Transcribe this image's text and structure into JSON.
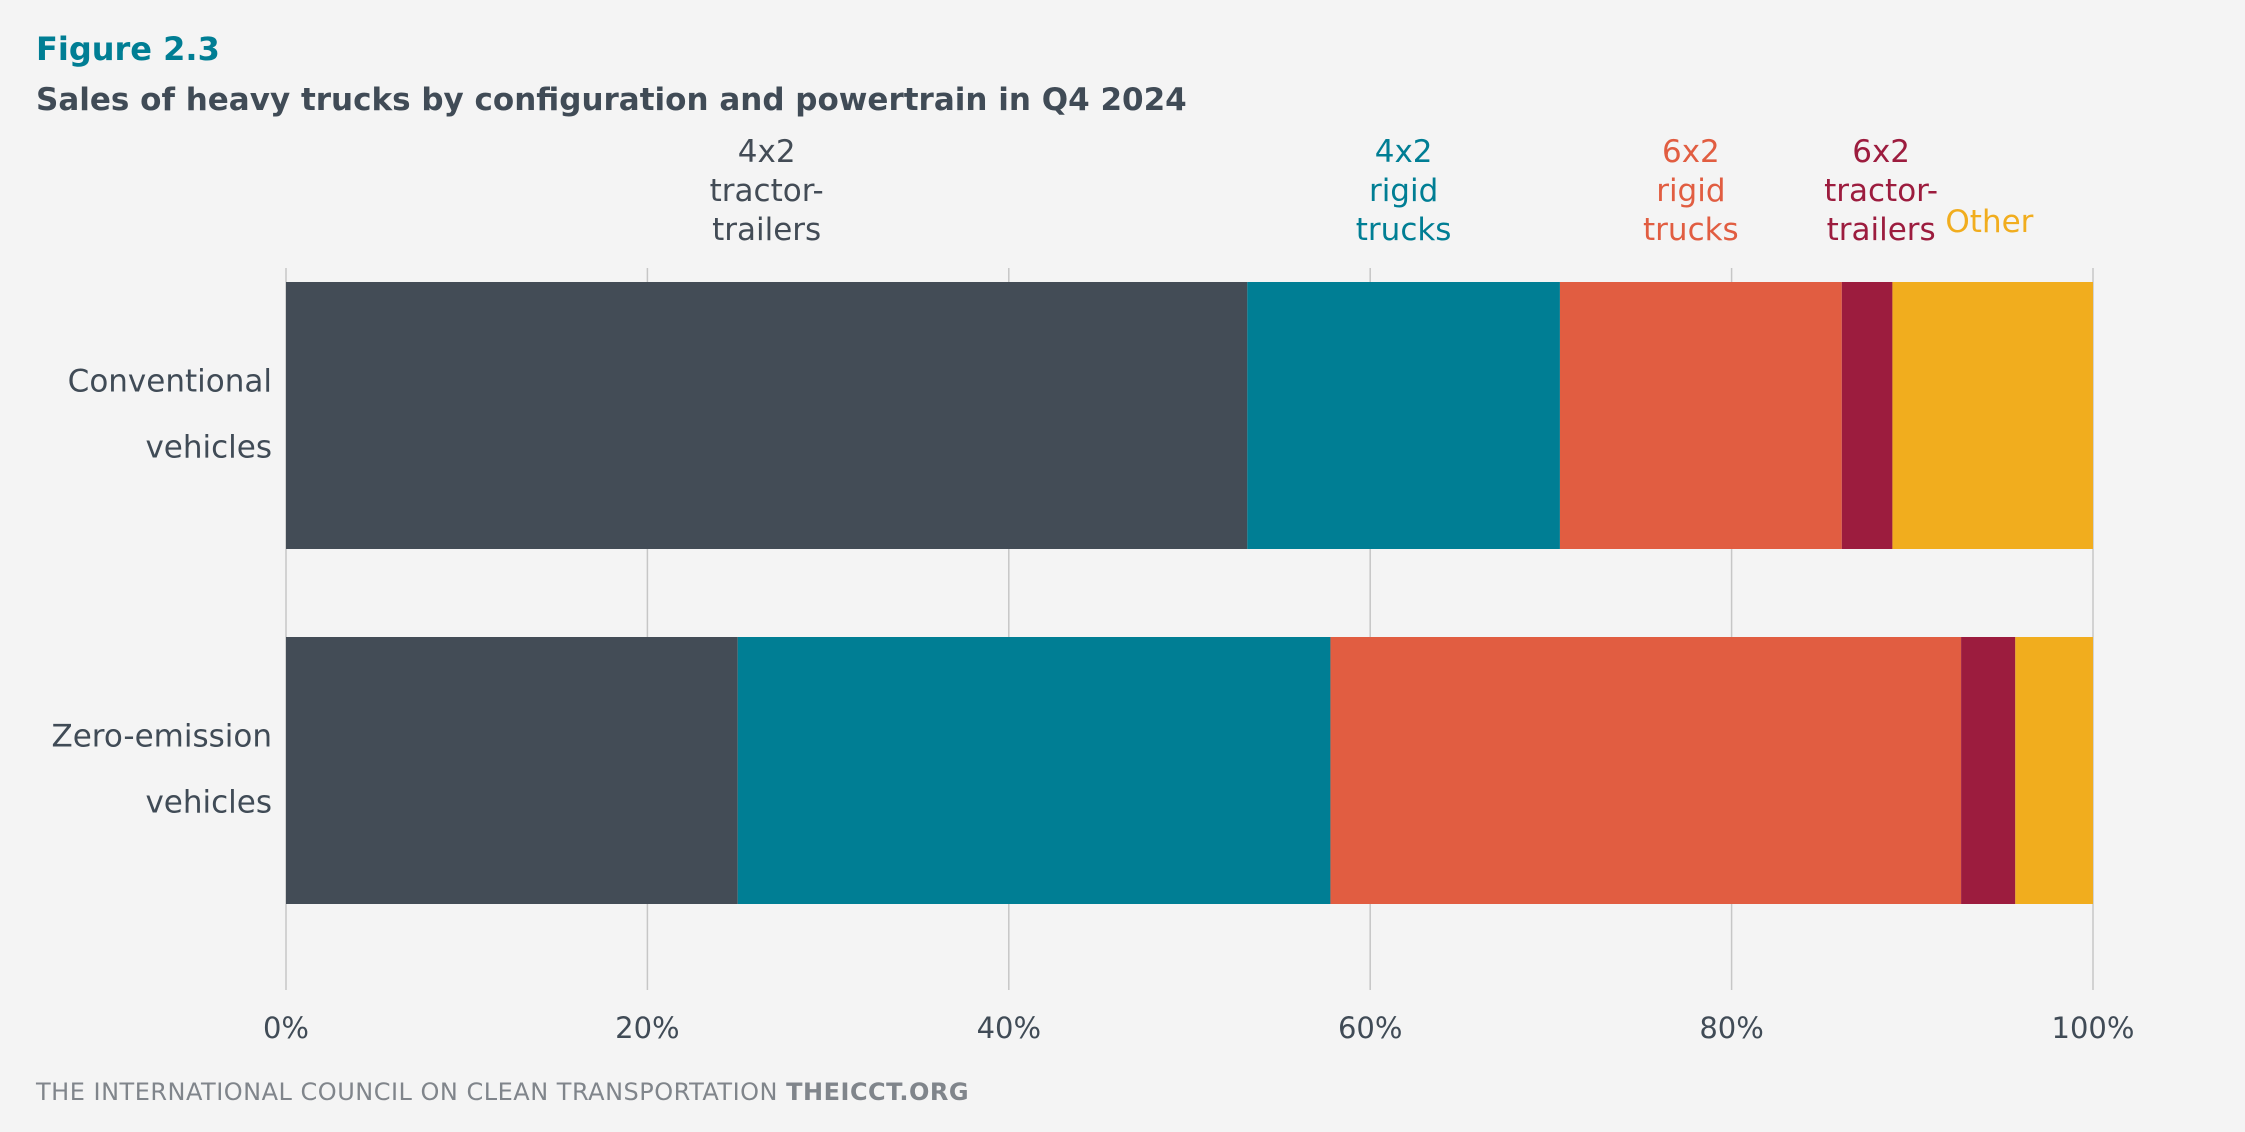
{
  "header": {
    "figure_label": "Figure 2.3",
    "title": "Sales of heavy trucks by configuration and powertrain in Q4 2024"
  },
  "footer": {
    "org": "THE INTERNATIONAL COUNCIL ON CLEAN TRANSPORTATION",
    "site": "THEICCT.ORG"
  },
  "chart_data": {
    "type": "bar",
    "orientation": "horizontal",
    "stacked": true,
    "categories": [
      [
        "Conventional",
        "vehicles"
      ],
      [
        "Zero-emission",
        "vehicles"
      ]
    ],
    "series": [
      {
        "name": [
          "4x2",
          "tractor-",
          "trailers"
        ],
        "color": "#434c56",
        "values": [
          53.2,
          25.0
        ]
      },
      {
        "name": [
          "4x2",
          "rigid",
          "trucks"
        ],
        "color": "#007e94",
        "values": [
          17.3,
          32.8
        ]
      },
      {
        "name": [
          "6x2",
          "rigid",
          "trucks"
        ],
        "color": "#e15d41",
        "values": [
          15.6,
          34.9
        ]
      },
      {
        "name": [
          "6x2",
          "tractor-",
          "trailers"
        ],
        "color": "#9c1c3e",
        "values": [
          2.8,
          3.0
        ]
      },
      {
        "name": [
          "Other"
        ],
        "color": "#f1ad1e",
        "values": [
          11.1,
          4.3
        ]
      }
    ],
    "xlim": [
      0,
      100
    ],
    "xticks": [
      0,
      20,
      40,
      60,
      80,
      100
    ],
    "xtick_labels": [
      "0%",
      "20%",
      "40%",
      "60%",
      "80%",
      "100%"
    ],
    "grid": true,
    "legend_placement": "top, above bar segments",
    "text_color": "#404b56",
    "grid_color": "#c6c6c6"
  }
}
